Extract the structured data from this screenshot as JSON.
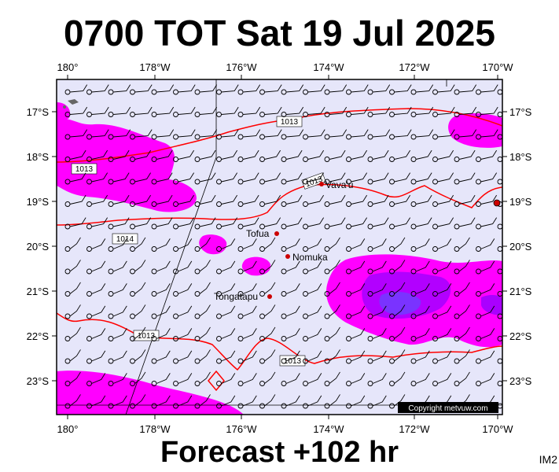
{
  "header": {
    "title": "0700 TOT Sat 19 Jul 2025"
  },
  "footer": {
    "forecast": "Forecast +102 hr",
    "product_code": "IM2"
  },
  "map": {
    "lon_ticks": [
      "180°",
      "178°W",
      "176°W",
      "174°W",
      "172°W",
      "170°W"
    ],
    "lat_ticks": [
      "17°S",
      "18°S",
      "19°S",
      "20°S",
      "21°S",
      "22°S",
      "23°S"
    ],
    "places": [
      {
        "name": "Vava'u"
      },
      {
        "name": "Tofua"
      },
      {
        "name": "Nomuka"
      },
      {
        "name": "Tongatapu"
      }
    ],
    "isobar_labels": [
      "1013",
      "1013",
      "1013",
      "1014",
      "1013",
      "1013"
    ],
    "copyright": "Copyright metvuw.com",
    "colors": {
      "ocean": "#e6e6fa",
      "rain_light": "#ff00ff",
      "rain_moderate": "#aa00ff",
      "rain_heavy": "#7a33ff",
      "isobar": "#ff0000",
      "land_marker": "#cc0000"
    }
  }
}
